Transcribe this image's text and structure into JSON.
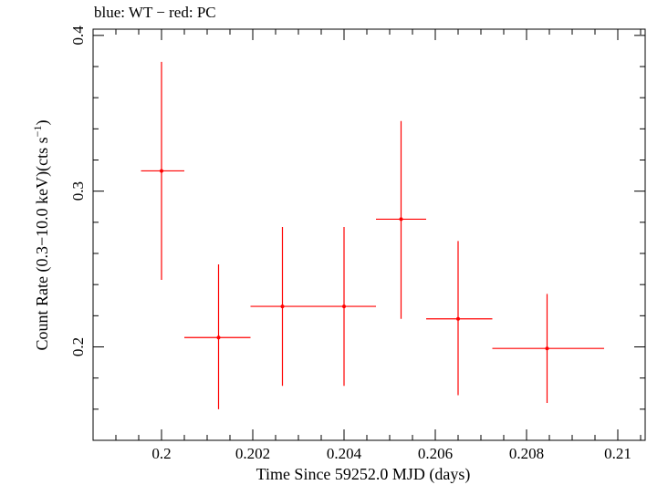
{
  "chart_data": {
    "type": "scatter",
    "title": "blue: WT − red: PC",
    "xlabel": "Time Since 59252.0 MJD (days)",
    "ylabel_main": "Count Rate (0.3−10.0 keV)(cts s",
    "ylabel_sup": "−1",
    "ylabel_end": ")",
    "xlim": [
      0.1985,
      0.2106
    ],
    "ylim": [
      0.14,
      0.404
    ],
    "x_ticks": [
      0.2,
      0.202,
      0.204,
      0.206,
      0.208,
      0.21
    ],
    "x_tick_labels": [
      "0.2",
      "0.202",
      "0.204",
      "0.206",
      "0.208",
      "0.21"
    ],
    "y_ticks": [
      0.2,
      0.3,
      0.4
    ],
    "y_tick_labels": [
      "0.2",
      "0.3",
      "0.4"
    ],
    "grid": false,
    "series": [
      {
        "color": "#ff0000",
        "points": [
          {
            "x": 0.2,
            "x_lo": 0.19955,
            "x_hi": 0.2005,
            "y": 0.313,
            "y_lo": 0.243,
            "y_hi": 0.383
          },
          {
            "x": 0.20125,
            "x_lo": 0.2005,
            "x_hi": 0.20195,
            "y": 0.206,
            "y_lo": 0.16,
            "y_hi": 0.253
          },
          {
            "x": 0.20265,
            "x_lo": 0.20195,
            "x_hi": 0.20335,
            "y": 0.226,
            "y_lo": 0.175,
            "y_hi": 0.277
          },
          {
            "x": 0.204,
            "x_lo": 0.20335,
            "x_hi": 0.2047,
            "y": 0.226,
            "y_lo": 0.175,
            "y_hi": 0.277
          },
          {
            "x": 0.20525,
            "x_lo": 0.2047,
            "x_hi": 0.2058,
            "y": 0.282,
            "y_lo": 0.218,
            "y_hi": 0.345
          },
          {
            "x": 0.2065,
            "x_lo": 0.2058,
            "x_hi": 0.20725,
            "y": 0.218,
            "y_lo": 0.169,
            "y_hi": 0.268
          },
          {
            "x": 0.20845,
            "x_lo": 0.20725,
            "x_hi": 0.2097,
            "y": 0.199,
            "y_lo": 0.164,
            "y_hi": 0.234
          }
        ]
      }
    ]
  }
}
